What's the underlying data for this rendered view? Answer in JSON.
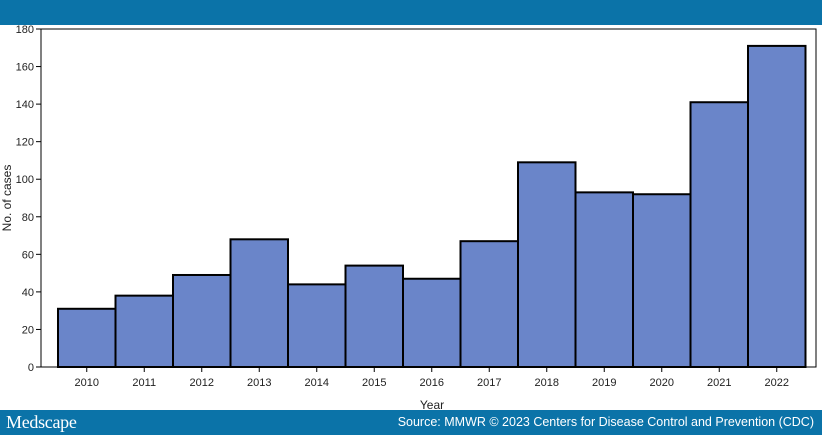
{
  "brand": "Medscape",
  "source": "Source: MMWR © 2023 Centers for Disease Control and Prevention (CDC)",
  "colors": {
    "header": "#0b73a8",
    "bar": "#6a85c9",
    "bar_stroke": "#000000"
  },
  "chart_data": {
    "type": "bar",
    "categories": [
      "2010",
      "2011",
      "2012",
      "2013",
      "2014",
      "2015",
      "2016",
      "2017",
      "2018",
      "2019",
      "2020",
      "2021",
      "2022"
    ],
    "values": [
      31,
      38,
      49,
      68,
      44,
      54,
      47,
      67,
      109,
      93,
      92,
      141,
      171
    ],
    "xlabel": "Year",
    "ylabel": "No. of cases",
    "ylim": [
      0,
      180
    ],
    "yticks": [
      0,
      20,
      40,
      60,
      80,
      100,
      120,
      140,
      160,
      180
    ],
    "grid": false
  }
}
